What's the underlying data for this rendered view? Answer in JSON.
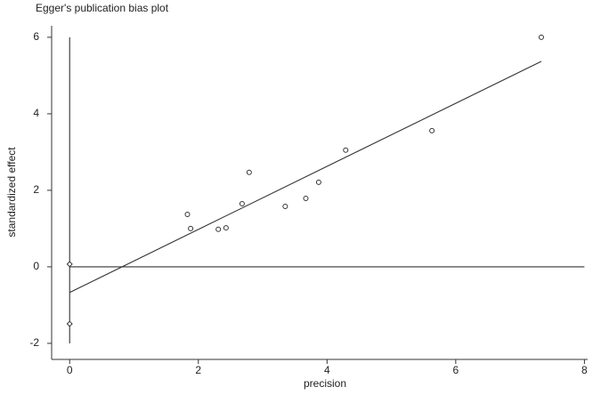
{
  "chart_data": {
    "type": "scatter",
    "title": "Egger's publication bias plot",
    "x_label": "precision",
    "y_label": "standardized effect",
    "xlim": [
      -0.28,
      8.05
    ],
    "ylim": [
      -2.42,
      6.3
    ],
    "xticks": [
      0,
      2,
      4,
      6,
      8
    ],
    "yticks": [
      -2,
      0,
      2,
      4,
      6
    ],
    "color": "#333333",
    "points": {
      "x": [
        1.83,
        1.88,
        2.31,
        2.43,
        2.68,
        2.79,
        3.35,
        3.67,
        3.87,
        4.29,
        5.63,
        7.33
      ],
      "y": [
        1.37,
        1.0,
        0.98,
        1.02,
        1.65,
        2.47,
        1.58,
        1.79,
        2.21,
        3.05,
        3.56,
        6.0
      ]
    },
    "intercept_points": {
      "x": [
        0,
        0
      ],
      "y": [
        0.07,
        -1.49
      ]
    },
    "fit_line": {
      "x": [
        0,
        7.33
      ],
      "y": [
        -0.67,
        5.37
      ]
    },
    "ci_line": {
      "x": [
        0,
        0
      ],
      "y": [
        -2,
        6
      ]
    },
    "reference_line": {
      "x": [
        0,
        8
      ],
      "y": [
        0,
        0
      ]
    }
  }
}
